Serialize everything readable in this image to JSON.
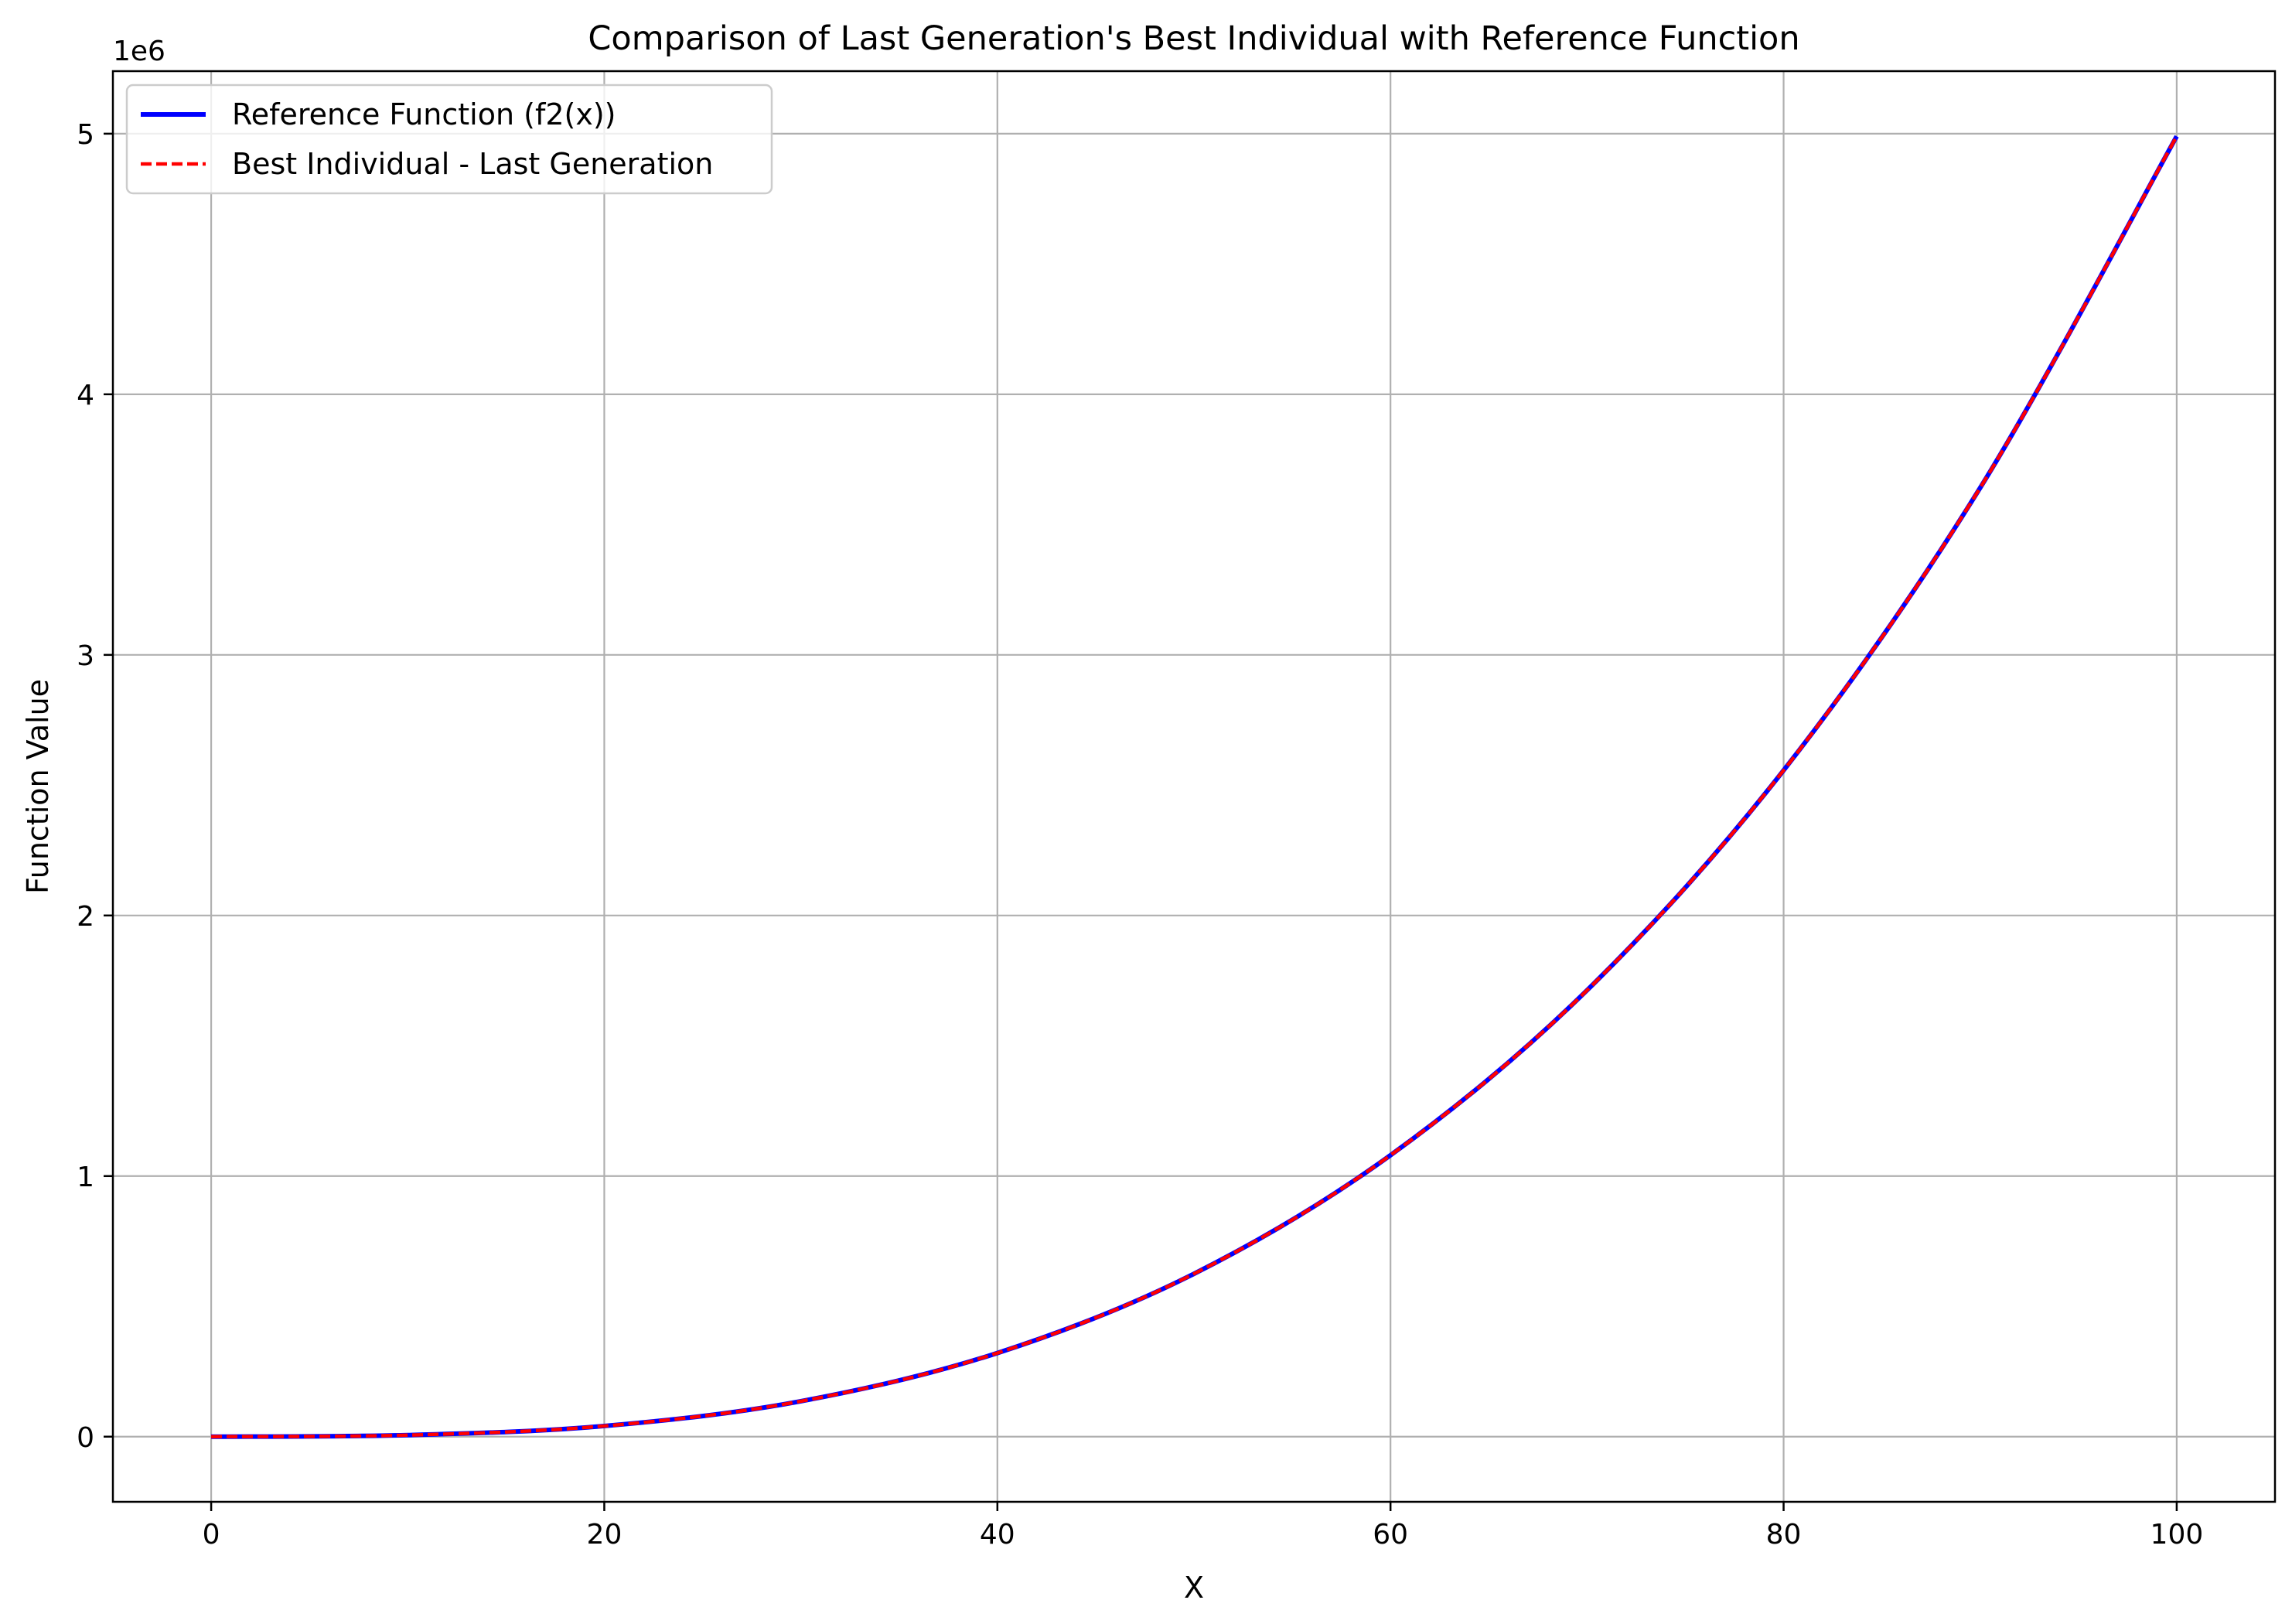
{
  "colors": {
    "reference": "#0000ff",
    "best": "#ff0000",
    "grid": "#b0b0b0",
    "axes": "#000000",
    "background": "#ffffff",
    "legend_border": "#cccccc"
  },
  "chart_data": {
    "type": "line",
    "title": "Comparison of Last Generation's Best Individual with Reference Function",
    "xlabel": "X",
    "ylabel": "Function Value",
    "y_offset_label": "1e6",
    "xlim": [
      -5,
      105
    ],
    "ylim": [
      -0.25,
      5.24
    ],
    "y_unit_multiplier": 1000000,
    "xticks": [
      0,
      20,
      40,
      60,
      80,
      100
    ],
    "xtick_labels": [
      "0",
      "20",
      "40",
      "60",
      "80",
      "100"
    ],
    "yticks": [
      0,
      1,
      2,
      3,
      4,
      5
    ],
    "ytick_labels": [
      "0",
      "1",
      "2",
      "3",
      "4",
      "5"
    ],
    "grid": true,
    "legend_position": "top-left",
    "x": [
      0,
      10,
      20,
      30,
      40,
      50,
      60,
      70,
      80,
      90,
      100
    ],
    "series": [
      {
        "name": "Reference Function (f2(x))",
        "style": "solid",
        "values": [
          0,
          0.006,
          0.041,
          0.136,
          0.321,
          0.625,
          1.08,
          1.713,
          2.557,
          3.641,
          4.99
        ]
      },
      {
        "name": "Best Individual - Last Generation",
        "style": "dashed",
        "values": [
          0,
          0.006,
          0.041,
          0.136,
          0.321,
          0.625,
          1.08,
          1.713,
          2.557,
          3.641,
          4.99
        ]
      }
    ]
  }
}
